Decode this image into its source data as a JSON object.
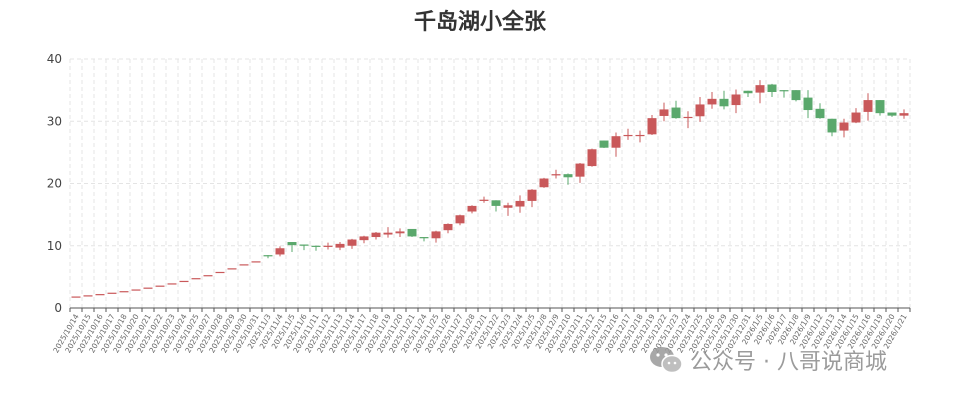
{
  "chart_data": {
    "type": "candlestick",
    "title": "千岛湖小全张",
    "xlabel": "",
    "ylabel": "",
    "ylim": [
      0,
      40
    ],
    "yticks": [
      0,
      10,
      20,
      30,
      40
    ],
    "grid": true,
    "colors": {
      "up": "#c9585a",
      "down": "#5aa86c",
      "grid": "#e4e4e4",
      "axis": "#555555"
    },
    "categories": [
      "2025/10/14",
      "2025/10/15",
      "2025/10/16",
      "2025/10/17",
      "2025/10/18",
      "2025/10/20",
      "2025/10/21",
      "2025/10/22",
      "2025/10/23",
      "2025/10/24",
      "2025/10/25",
      "2025/10/27",
      "2025/10/28",
      "2025/10/29",
      "2025/10/30",
      "2025/10/31",
      "2025/11/3",
      "2025/11/4",
      "2025/11/5",
      "2025/11/6",
      "2025/11/11",
      "2025/11/12",
      "2025/11/13",
      "2025/11/14",
      "2025/11/17",
      "2025/11/18",
      "2025/11/19",
      "2025/11/20",
      "2025/11/21",
      "2025/11/24",
      "2025/11/25",
      "2025/11/26",
      "2025/11/27",
      "2025/11/28",
      "2025/12/1",
      "2025/12/2",
      "2025/12/3",
      "2025/12/4",
      "2025/12/5",
      "2025/12/8",
      "2025/12/9",
      "2025/12/10",
      "2025/12/11",
      "2025/12/12",
      "2025/12/15",
      "2025/12/16",
      "2025/12/17",
      "2025/12/18",
      "2025/12/19",
      "2025/12/22",
      "2025/12/23",
      "2025/12/24",
      "2025/12/25",
      "2025/12/26",
      "2025/12/29",
      "2025/12/30",
      "2025/12/31",
      "2026/1/5",
      "2026/1/6",
      "2026/1/7",
      "2026/1/8",
      "2026/1/9",
      "2026/1/12",
      "2026/1/13",
      "2026/1/14",
      "2026/1/15",
      "2026/1/16",
      "2026/1/19",
      "2026/1/20",
      "2026/1/21"
    ],
    "ohlc": [
      [
        1.85,
        1.85,
        1.85,
        1.85
      ],
      [
        2.04,
        2.04,
        2.04,
        2.04
      ],
      [
        2.24,
        2.24,
        2.24,
        2.24
      ],
      [
        2.46,
        2.46,
        2.46,
        2.46
      ],
      [
        2.71,
        2.71,
        2.71,
        2.71
      ],
      [
        2.98,
        2.98,
        2.98,
        2.98
      ],
      [
        3.28,
        3.28,
        3.28,
        3.28
      ],
      [
        3.6,
        3.6,
        3.6,
        3.6
      ],
      [
        3.96,
        3.96,
        3.96,
        3.96
      ],
      [
        4.36,
        4.36,
        4.36,
        4.36
      ],
      [
        4.8,
        4.8,
        4.8,
        4.8
      ],
      [
        5.28,
        5.28,
        5.28,
        5.28
      ],
      [
        5.8,
        5.8,
        5.8,
        5.8
      ],
      [
        6.38,
        6.38,
        6.38,
        6.38
      ],
      [
        7.02,
        7.02,
        7.02,
        7.02
      ],
      [
        7.5,
        7.5,
        7.5,
        7.5
      ],
      [
        8.49,
        8.45,
        8.49,
        8.0
      ],
      [
        8.6,
        9.6,
        9.9,
        8.3
      ],
      [
        10.6,
        10.1,
        10.6,
        9.0
      ],
      [
        10.2,
        10.0,
        10.2,
        9.3
      ],
      [
        10.0,
        9.9,
        10.0,
        9.2
      ],
      [
        9.9,
        10.0,
        10.5,
        9.4
      ],
      [
        9.7,
        10.3,
        10.6,
        9.3
      ],
      [
        10.0,
        11.0,
        11.1,
        9.5
      ],
      [
        10.9,
        11.5,
        11.6,
        10.4
      ],
      [
        11.4,
        12.1,
        12.2,
        11.0
      ],
      [
        11.8,
        12.1,
        13.0,
        11.3
      ],
      [
        12.0,
        12.3,
        12.8,
        11.4
      ],
      [
        12.7,
        11.5,
        12.7,
        11.4
      ],
      [
        11.4,
        11.2,
        11.4,
        10.7
      ],
      [
        11.2,
        12.3,
        12.4,
        10.5
      ],
      [
        12.5,
        13.5,
        13.6,
        12.0
      ],
      [
        13.6,
        14.9,
        15.0,
        13.3
      ],
      [
        15.5,
        16.4,
        16.5,
        15.2
      ],
      [
        17.2,
        17.4,
        17.9,
        16.9
      ],
      [
        17.3,
        16.4,
        17.3,
        15.5
      ],
      [
        16.1,
        16.5,
        16.9,
        14.8
      ],
      [
        16.3,
        17.2,
        18.1,
        15.3
      ],
      [
        17.2,
        19.0,
        19.1,
        16.2
      ],
      [
        19.4,
        20.8,
        20.9,
        19.3
      ],
      [
        21.3,
        21.5,
        22.2,
        20.8
      ],
      [
        21.5,
        21.0,
        21.6,
        19.8
      ],
      [
        21.1,
        23.2,
        23.3,
        20.1
      ],
      [
        22.8,
        25.5,
        25.6,
        22.7
      ],
      [
        26.9,
        25.75,
        26.9,
        25.7
      ],
      [
        25.75,
        27.6,
        28.2,
        24.3
      ],
      [
        27.7,
        27.8,
        28.8,
        27.0
      ],
      [
        27.7,
        27.8,
        28.5,
        26.6
      ],
      [
        27.9,
        30.5,
        31.0,
        27.8
      ],
      [
        30.85,
        31.9,
        33.0,
        30.0
      ],
      [
        32.2,
        30.5,
        33.3,
        30.4
      ],
      [
        30.6,
        30.7,
        31.6,
        28.9
      ],
      [
        30.8,
        32.7,
        33.9,
        29.9
      ],
      [
        32.7,
        33.6,
        34.7,
        32.0
      ],
      [
        33.6,
        32.4,
        34.9,
        31.9
      ],
      [
        32.6,
        34.3,
        35.1,
        31.3
      ],
      [
        34.9,
        34.5,
        34.9,
        33.9
      ],
      [
        34.6,
        35.8,
        36.6,
        32.9
      ],
      [
        35.9,
        34.7,
        36.0,
        33.9
      ],
      [
        35.0,
        34.9,
        35.0,
        33.8
      ],
      [
        35.0,
        33.4,
        35.0,
        33.2
      ],
      [
        33.8,
        31.8,
        35.0,
        30.5
      ],
      [
        32.0,
        30.5,
        32.9,
        30.4
      ],
      [
        30.4,
        28.2,
        30.4,
        27.6
      ],
      [
        28.5,
        29.8,
        30.4,
        27.4
      ],
      [
        29.8,
        31.4,
        32.1,
        29.7
      ],
      [
        31.5,
        33.4,
        34.5,
        30.1
      ],
      [
        33.4,
        31.3,
        33.4,
        30.9
      ],
      [
        31.4,
        30.9,
        31.4,
        30.7
      ],
      [
        30.9,
        31.3,
        31.9,
        30.4
      ]
    ]
  },
  "watermark": {
    "text": "公众号 · 八哥说商城",
    "icon": "wechat-icon"
  }
}
